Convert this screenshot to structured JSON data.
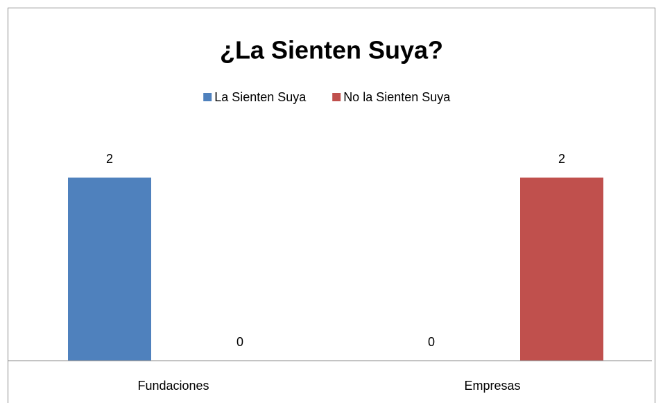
{
  "chart_data": {
    "type": "bar",
    "title": "¿La Sienten Suya?",
    "categories": [
      "Fundaciones",
      "Empresas"
    ],
    "series": [
      {
        "name": "La Sienten Suya",
        "color": "#4f81bd",
        "values": [
          2,
          0
        ]
      },
      {
        "name": "No la Sienten Suya",
        "color": "#c0504d",
        "values": [
          0,
          2
        ]
      }
    ],
    "ylim": [
      0,
      2.5
    ],
    "legend": "top"
  }
}
